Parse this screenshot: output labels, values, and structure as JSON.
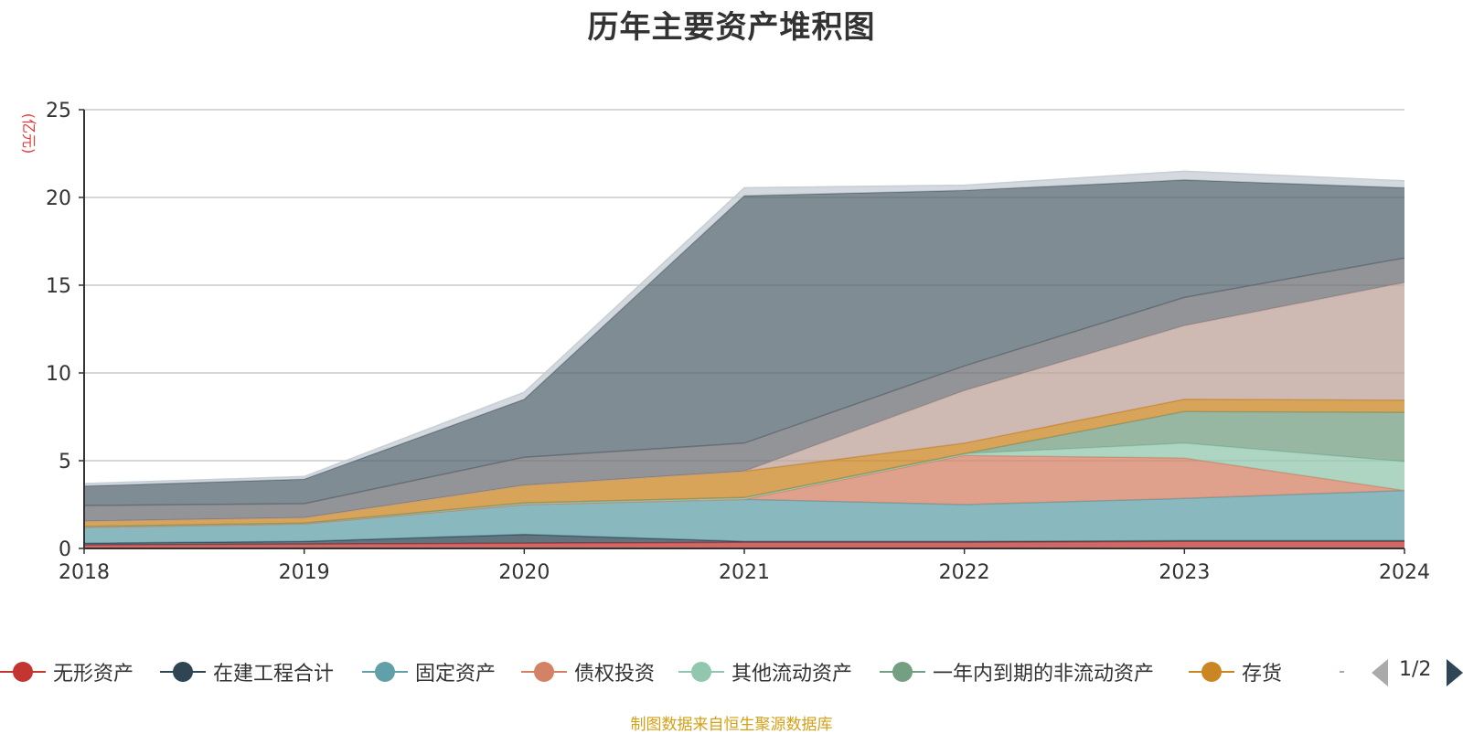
{
  "chart_data": {
    "type": "area",
    "title": "历年主要资产堆积图",
    "ylabel": "(亿元)",
    "xlabel": "",
    "x": [
      "2018",
      "2019",
      "2020",
      "2021",
      "2022",
      "2023",
      "2024"
    ],
    "ylim": [
      0,
      25
    ],
    "yticks": [
      "0",
      "5",
      "10",
      "15",
      "20",
      "25"
    ],
    "stacked": true,
    "grid": true,
    "legend_position": "bottom",
    "series": [
      {
        "name": "无形资产",
        "color": "#c23531",
        "values": [
          0.2,
          0.25,
          0.3,
          0.35,
          0.35,
          0.4,
          0.4
        ]
      },
      {
        "name": "在建工程合计",
        "color": "#2f4554",
        "values": [
          0.1,
          0.15,
          0.5,
          0.05,
          0.05,
          0.05,
          0.05
        ]
      },
      {
        "name": "固定资产",
        "color": "#61a0a8",
        "values": [
          0.9,
          1.0,
          1.7,
          2.4,
          2.1,
          2.4,
          2.85
        ]
      },
      {
        "name": "债权投资",
        "color": "#d48265",
        "values": [
          0.0,
          0.0,
          0.0,
          0.0,
          2.8,
          2.3,
          0.0
        ]
      },
      {
        "name": "其他流动资产",
        "color": "#91c7ae",
        "values": [
          0.05,
          0.05,
          0.1,
          0.1,
          0.1,
          0.85,
          1.65
        ]
      },
      {
        "name": "一年内到期的非流动资产",
        "color": "#749f83",
        "values": [
          0.0,
          0.0,
          0.0,
          0.0,
          0.0,
          1.8,
          2.8
        ]
      },
      {
        "name": "存货",
        "color": "#ca8622",
        "values": [
          0.3,
          0.3,
          1.0,
          1.5,
          0.6,
          0.7,
          0.7
        ]
      },
      {
        "name": "",
        "color": "#bda29a",
        "values": [
          0.0,
          0.0,
          0.0,
          0.0,
          3.0,
          4.2,
          6.7
        ]
      },
      {
        "name": "",
        "color": "#6e7074",
        "values": [
          0.9,
          0.8,
          1.6,
          1.6,
          1.4,
          1.6,
          1.4
        ]
      },
      {
        "name": "",
        "color": "#546570",
        "values": [
          1.1,
          1.4,
          3.3,
          14.1,
          10.0,
          6.7,
          4.0
        ]
      },
      {
        "name": "",
        "color": "#c4ccd3",
        "values": [
          0.15,
          0.15,
          0.4,
          0.45,
          0.3,
          0.5,
          0.4
        ]
      }
    ]
  },
  "legend": {
    "page": "1/2"
  },
  "source": "制图数据来自恒生聚源数据库"
}
